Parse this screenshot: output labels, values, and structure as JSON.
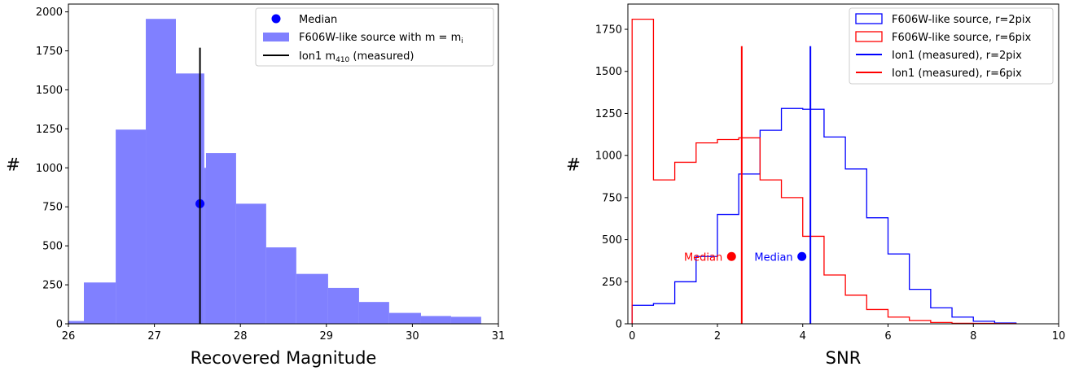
{
  "chart_data": [
    {
      "type": "bar",
      "xlabel": "Recovered Magnitude",
      "ylabel": "#",
      "xlim": [
        26,
        31
      ],
      "ylim": [
        0,
        2050
      ],
      "xticks": [
        26,
        27,
        28,
        29,
        30,
        31
      ],
      "yticks": [
        0,
        250,
        500,
        750,
        1000,
        1250,
        1500,
        1750,
        2000
      ],
      "legend_position": "top-right",
      "colors": {
        "hist": "#8080ff",
        "median": "#0000ff",
        "line": "#000000"
      },
      "series": [
        {
          "name": "F606W-like source with m  = m",
          "name_subscript": "i",
          "kind": "histogram",
          "bins": [
            [
              26.0,
              26.18,
              18
            ],
            [
              26.18,
              26.55,
              265
            ],
            [
              26.55,
              26.9,
              1245
            ],
            [
              26.9,
              27.25,
              1955
            ],
            [
              27.25,
              27.58,
              1605
            ],
            [
              27.58,
              27.6,
              1000
            ],
            [
              27.6,
              27.95,
              1095
            ],
            [
              27.95,
              28.3,
              770
            ],
            [
              28.3,
              28.65,
              490
            ],
            [
              28.65,
              29.02,
              320
            ],
            [
              29.02,
              29.38,
              230
            ],
            [
              29.38,
              29.73,
              140
            ],
            [
              29.73,
              30.1,
              70
            ],
            [
              30.1,
              30.45,
              50
            ],
            [
              30.45,
              30.8,
              45
            ]
          ]
        },
        {
          "name": "Median",
          "kind": "point",
          "x": 27.53,
          "y": 770
        },
        {
          "name": "Ion1 m",
          "name_subscript": "410",
          "name_suffix": " (measured)",
          "kind": "vline",
          "x": 27.53,
          "y0": 0,
          "y1": 1770
        }
      ]
    },
    {
      "type": "line",
      "xlabel": "SNR",
      "ylabel": "#",
      "xlim": [
        -0.1,
        10
      ],
      "ylim": [
        0,
        1900
      ],
      "xticks": [
        0,
        2,
        4,
        6,
        8,
        10
      ],
      "yticks": [
        0,
        250,
        500,
        750,
        1000,
        1250,
        1500,
        1750
      ],
      "legend_position": "top-right",
      "colors": {
        "r2": "#0000ff",
        "r6": "#ff0000"
      },
      "series": [
        {
          "name": "F606W-like source, r=2pix",
          "kind": "step",
          "color": "#0000ff",
          "edges": [
            0,
            0.5,
            1.0,
            1.5,
            2.0,
            2.5,
            3.0,
            3.5,
            4.0,
            4.5,
            5.0,
            5.5,
            6.0,
            6.5,
            7.0,
            7.5,
            8.0,
            8.5,
            9.0
          ],
          "counts": [
            110,
            120,
            250,
            400,
            650,
            890,
            1150,
            1280,
            1275,
            1110,
            920,
            630,
            415,
            205,
            95,
            40,
            15,
            5
          ]
        },
        {
          "name": "F606W-like source, r=6pix",
          "kind": "step",
          "color": "#ff0000",
          "edges": [
            0,
            0.5,
            1.0,
            1.5,
            2.0,
            2.5,
            3.0,
            3.5,
            4.0,
            4.5,
            5.0,
            5.5,
            6.0,
            6.5,
            7.0,
            7.5,
            8.0,
            8.5,
            9.0
          ],
          "counts": [
            1810,
            855,
            960,
            1075,
            1095,
            1105,
            855,
            750,
            520,
            290,
            170,
            85,
            40,
            20,
            8,
            3,
            2,
            1
          ]
        },
        {
          "name": "Ion1 (measured), r=2pix",
          "kind": "vline",
          "color": "#0000ff",
          "x": 4.18,
          "y0": 0,
          "y1": 1650
        },
        {
          "name": "Ion1 (measured), r=6pix",
          "kind": "vline",
          "color": "#ff0000",
          "x": 2.57,
          "y0": 0,
          "y1": 1650
        }
      ],
      "annotations": [
        {
          "text": "Median",
          "color": "#ff0000",
          "x": 2.33,
          "y": 400
        },
        {
          "text": "Median",
          "color": "#0000ff",
          "x": 3.98,
          "y": 400
        }
      ]
    }
  ]
}
